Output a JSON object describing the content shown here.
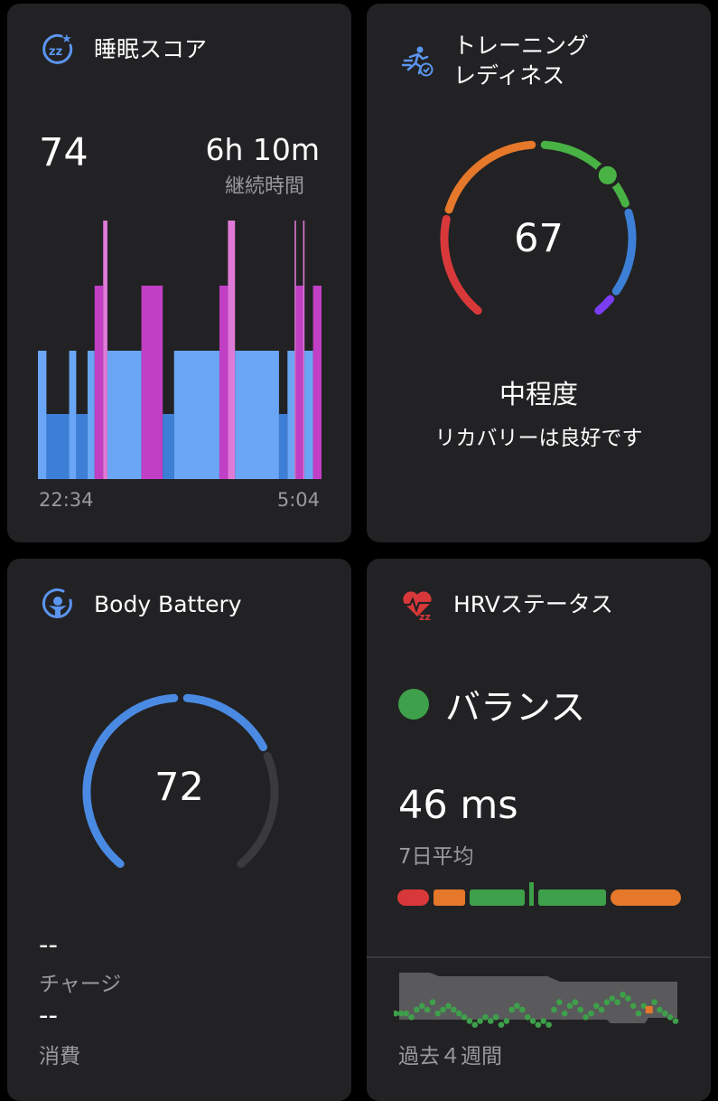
{
  "sleep": {
    "title": "睡眠スコア",
    "score": "74",
    "duration": "6h 10m",
    "duration_label": "継続時間",
    "start_time": "22:34",
    "end_time": "5:04",
    "icon": "sleep-zz-icon",
    "chart_data": {
      "type": "bar",
      "title": "",
      "ylevels": [
        "deep",
        "light",
        "rem",
        "awake"
      ],
      "stages": [
        {
          "stage": "light",
          "start": 0.0,
          "end": 0.03
        },
        {
          "stage": "deep",
          "start": 0.03,
          "end": 0.11
        },
        {
          "stage": "light",
          "start": 0.11,
          "end": 0.135
        },
        {
          "stage": "deep",
          "start": 0.135,
          "end": 0.175
        },
        {
          "stage": "light",
          "start": 0.175,
          "end": 0.2
        },
        {
          "stage": "rem",
          "start": 0.2,
          "end": 0.23
        },
        {
          "stage": "awake",
          "start": 0.23,
          "end": 0.245
        },
        {
          "stage": "light",
          "start": 0.245,
          "end": 0.365
        },
        {
          "stage": "rem",
          "start": 0.365,
          "end": 0.44
        },
        {
          "stage": "deep",
          "start": 0.44,
          "end": 0.48
        },
        {
          "stage": "light",
          "start": 0.48,
          "end": 0.64
        },
        {
          "stage": "rem",
          "start": 0.64,
          "end": 0.67
        },
        {
          "stage": "awake",
          "start": 0.67,
          "end": 0.695
        },
        {
          "stage": "light",
          "start": 0.695,
          "end": 0.85
        },
        {
          "stage": "deep",
          "start": 0.85,
          "end": 0.88
        },
        {
          "stage": "light",
          "start": 0.88,
          "end": 0.905
        },
        {
          "stage": "awake",
          "start": 0.905,
          "end": 0.91
        },
        {
          "stage": "rem",
          "start": 0.91,
          "end": 0.935
        },
        {
          "stage": "awake",
          "start": 0.935,
          "end": 0.94
        },
        {
          "stage": "light",
          "start": 0.94,
          "end": 0.97
        },
        {
          "stage": "rem",
          "start": 0.97,
          "end": 1.0
        }
      ],
      "colors": {
        "deep": "#3d7fd6",
        "light": "#6aa6f5",
        "rem": "#c13fc4",
        "awake": "#e07ad8"
      }
    }
  },
  "training": {
    "title_line1": "トレーニング",
    "title_line2": "レディネス",
    "value": 67,
    "value_text": "67",
    "level": "中程度",
    "message": "リカバリーは良好です",
    "icon": "runner-check-icon",
    "colors": {
      "red": "#d9383a",
      "orange": "#e5782a",
      "green": "#49b245",
      "blue": "#3d7fd6",
      "purple": "#7a3df2",
      "track": "#3a3a3c"
    }
  },
  "body_battery": {
    "title": "Body Battery",
    "value": 72,
    "value_text": "72",
    "charge_value": "--",
    "charge_label": "チャージ",
    "drain_value": "--",
    "drain_label": "消費",
    "icon": "body-battery-icon",
    "colors": {
      "fill": "#4a8ae3",
      "track": "#3a3a3c"
    }
  },
  "hrv": {
    "title": "HRVステータス",
    "status": "バランス",
    "status_color": "#3ea04a",
    "value": "46 ms",
    "value_label": "7日平均",
    "period_label": "過去４週間",
    "icon": "hrv-heart-icon",
    "range_bar": [
      "#d9383a",
      "#e5782a",
      "#3ea04a",
      "#3ea04a",
      "#e5782a"
    ],
    "chart_data": {
      "type": "scatter",
      "title": "",
      "values": [
        55,
        55,
        55,
        54,
        56,
        57,
        56,
        58,
        55,
        56,
        57,
        56,
        55,
        54,
        53,
        52,
        53,
        54,
        53,
        54,
        52,
        53,
        56,
        57,
        56,
        54,
        53,
        52,
        53,
        52,
        56,
        58,
        55,
        57,
        58,
        56,
        54,
        55,
        57,
        56,
        58,
        59,
        58,
        60,
        59,
        57,
        55,
        57,
        56,
        58,
        56,
        55,
        54,
        53
      ],
      "outlier_index": 48,
      "colors": {
        "point": "#3ea04a",
        "outlier": "#e5782a",
        "band": "#5a5a5c"
      }
    }
  }
}
